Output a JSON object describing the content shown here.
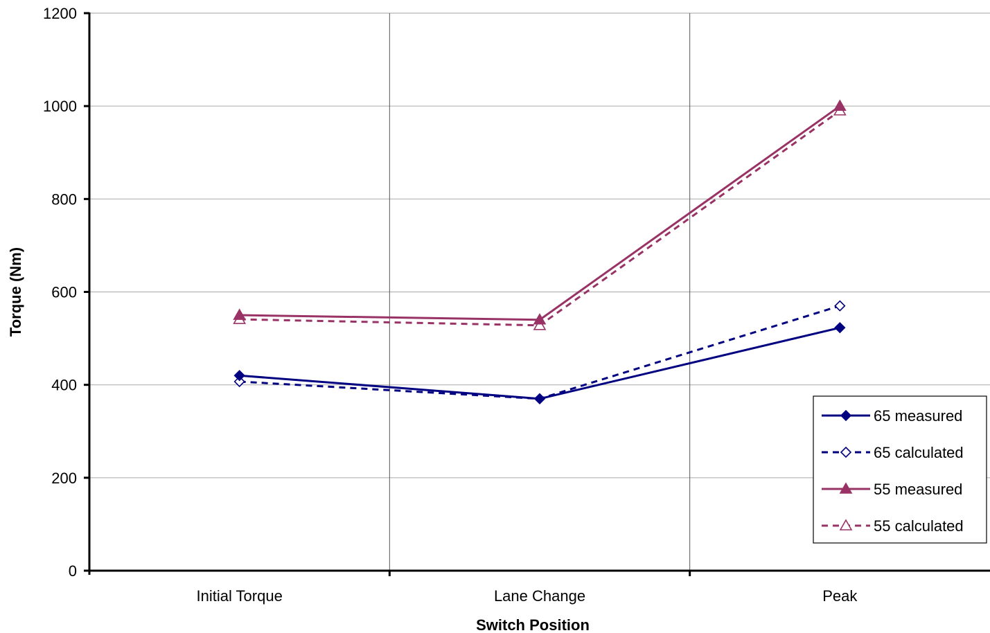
{
  "chart_data": {
    "type": "line",
    "title": "",
    "xlabel": "Switch Position",
    "ylabel": "Torque (Nm)",
    "categories": [
      "Initial Torque",
      "Lane Change",
      "Peak"
    ],
    "ylim": [
      0,
      1200
    ],
    "yticks": [
      0,
      200,
      400,
      600,
      800,
      1000,
      1200
    ],
    "grid": {
      "horizontal": true,
      "vertical_category_dividers": true
    },
    "legend_position": "bottom-right",
    "series": [
      {
        "name": "65 measured",
        "values": [
          420,
          370,
          523
        ],
        "color": "#000080",
        "dash": "solid",
        "marker": "diamond-filled"
      },
      {
        "name": "65 calculated",
        "values": [
          407,
          370,
          570
        ],
        "color": "#000080",
        "dash": "dashed",
        "marker": "diamond-open"
      },
      {
        "name": "55 measured",
        "values": [
          550,
          540,
          1000
        ],
        "color": "#993366",
        "dash": "solid",
        "marker": "triangle-filled"
      },
      {
        "name": "55 calculated",
        "values": [
          541,
          528,
          990
        ],
        "color": "#993366",
        "dash": "dashed",
        "marker": "triangle-open"
      }
    ]
  }
}
